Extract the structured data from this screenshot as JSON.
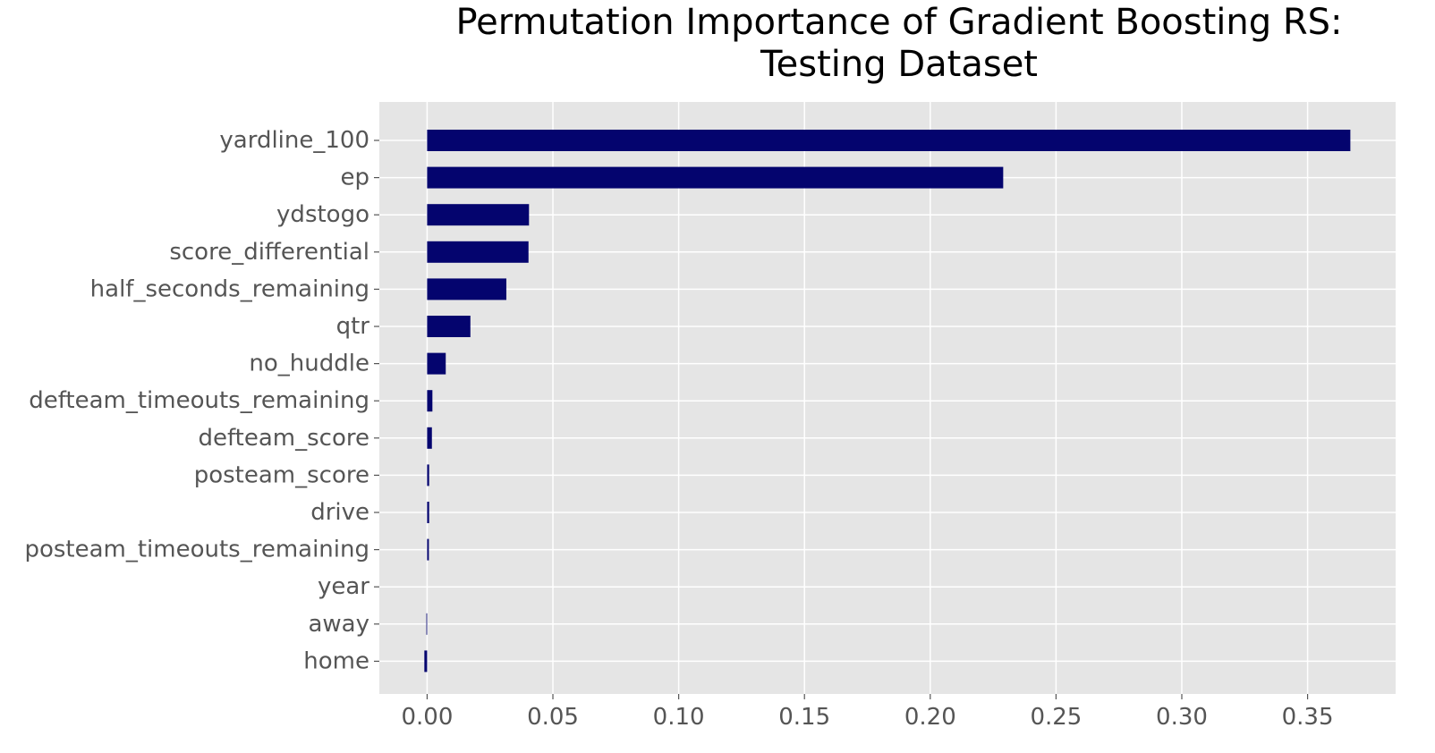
{
  "chart_data": {
    "type": "bar",
    "orientation": "horizontal",
    "title": [
      "Permutation Importance of Gradient Boosting RS:",
      "Testing Dataset"
    ],
    "xlabel": "",
    "ylabel": "",
    "categories": [
      "yardline_100",
      "ep",
      "ydstogo",
      "score_differential",
      "half_seconds_remaining",
      "qtr",
      "no_huddle",
      "defteam_timeouts_remaining",
      "defteam_score",
      "posteam_score",
      "drive",
      "posteam_timeouts_remaining",
      "year",
      "away",
      "home"
    ],
    "values": [
      0.367,
      0.229,
      0.0405,
      0.0403,
      0.0315,
      0.0172,
      0.0074,
      0.0021,
      0.0019,
      0.0008,
      0.0008,
      0.0007,
      0.0,
      -0.0003,
      -0.0011
    ],
    "xlim": [
      -0.019,
      0.385
    ],
    "xticks": [
      0.0,
      0.05,
      0.1,
      0.15,
      0.2,
      0.25,
      0.3,
      0.35
    ],
    "xtick_labels": [
      "0.00",
      "0.05",
      "0.10",
      "0.15",
      "0.20",
      "0.25",
      "0.30",
      "0.35"
    ],
    "grid": true,
    "legend": "none",
    "colors": {
      "bar": "#04046e",
      "plot_background": "#e5e5e5",
      "grid": "#ffffff",
      "tick_label": "#555555",
      "title": "#000000"
    }
  }
}
